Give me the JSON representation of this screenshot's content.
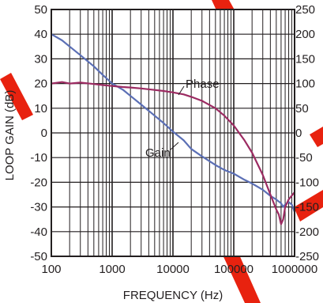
{
  "chart_data": {
    "type": "line",
    "title": "",
    "xlabel": "FREQUENCY (Hz)",
    "ylabel": "LOOP GAIN (dB)",
    "ylabel_right": "",
    "x_scale": "log",
    "xlim": [
      100,
      1000000
    ],
    "ylim": [
      -50,
      50
    ],
    "ylim_right": [
      -250,
      250
    ],
    "grid": true,
    "x_ticks": [
      "100",
      "1000",
      "10000",
      "100000",
      "1000000"
    ],
    "y_ticks": [
      "50",
      "40",
      "30",
      "20",
      "10",
      "0",
      "-10",
      "-20",
      "-30",
      "-40",
      "-50"
    ],
    "y_ticks_right": [
      "250",
      "200",
      "150",
      "100",
      "50",
      "0",
      "-50",
      "-100",
      "-150",
      "-200",
      "-250"
    ],
    "annotations": [
      "Phase",
      "Gain"
    ],
    "colors": {
      "gain": "#5b6fb5",
      "phase": "#9c2b62",
      "grid": "#231f20",
      "watermark": "#e8220f"
    },
    "series": [
      {
        "key": "gain",
        "axis": "left",
        "x": [
          100,
          150,
          200,
          300,
          500,
          700,
          1000,
          1500,
          2000,
          3000,
          5000,
          7000,
          10000,
          15000,
          20000,
          30000,
          50000,
          70000,
          100000,
          150000,
          200000,
          300000,
          400000,
          500000,
          600000,
          650000,
          700000,
          800000,
          900000,
          1000000
        ],
        "values": [
          40,
          37.5,
          35,
          31.5,
          27,
          23.5,
          20,
          17.5,
          15,
          11.5,
          7,
          4,
          0.5,
          -3,
          -6.5,
          -9.5,
          -13,
          -15,
          -16.5,
          -19,
          -20.5,
          -23,
          -25.5,
          -27,
          -28.5,
          -30,
          -29,
          -28,
          -29,
          -32
        ]
      },
      {
        "key": "phase",
        "axis": "right",
        "x": [
          100,
          150,
          200,
          300,
          500,
          700,
          1000,
          1500,
          2000,
          3000,
          5000,
          7000,
          10000,
          15000,
          20000,
          30000,
          50000,
          70000,
          100000,
          150000,
          200000,
          300000,
          400000,
          500000,
          550000,
          600000,
          650000,
          700000,
          800000,
          1000000
        ],
        "values": [
          100,
          103,
          100,
          102,
          99,
          97,
          95,
          93,
          92,
          90,
          87,
          85,
          82,
          78,
          73,
          65,
          50,
          35,
          15,
          -15,
          -40,
          -85,
          -125,
          -155,
          -165,
          -185,
          -175,
          -150,
          -135,
          -120
        ]
      }
    ]
  }
}
